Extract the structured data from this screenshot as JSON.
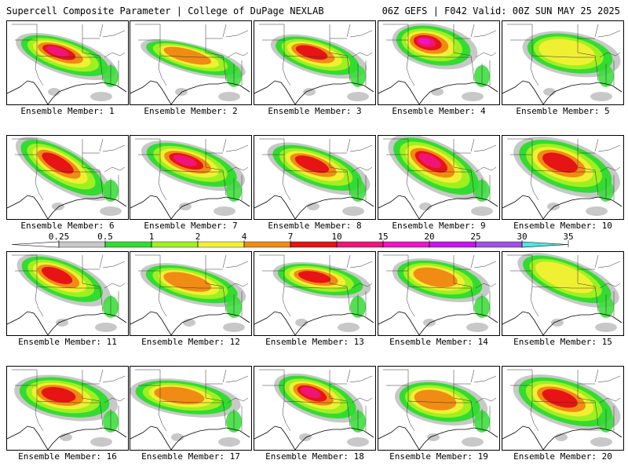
{
  "header": {
    "title": "Supercell Composite Parameter | College of DuPage NEXLAB",
    "run_info": "06Z GEFS | F042 Valid: 00Z SUN MAY 25 2025"
  },
  "colorbar": {
    "levels": [
      "0.25",
      "0.5",
      "1",
      "2",
      "4",
      "7",
      "10",
      "15",
      "20",
      "25",
      "30",
      "35"
    ],
    "colors": [
      "#c8c8c8",
      "#32dc32",
      "#a0f020",
      "#f0f032",
      "#f08c14",
      "#e61414",
      "#f01478",
      "#f014c8",
      "#c814f0",
      "#a050e6",
      "#50e6e6"
    ]
  },
  "panels": [
    {
      "label": "Ensemble Member: 1"
    },
    {
      "label": "Ensemble Member: 2"
    },
    {
      "label": "Ensemble Member: 3"
    },
    {
      "label": "Ensemble Member: 4"
    },
    {
      "label": "Ensemble Member: 5"
    },
    {
      "label": "Ensemble Member: 6"
    },
    {
      "label": "Ensemble Member: 7"
    },
    {
      "label": "Ensemble Member: 8"
    },
    {
      "label": "Ensemble Member: 9"
    },
    {
      "label": "Ensemble Member: 10"
    },
    {
      "label": "Ensemble Member: 11"
    },
    {
      "label": "Ensemble Member: 12"
    },
    {
      "label": "Ensemble Member: 13"
    },
    {
      "label": "Ensemble Member: 14"
    },
    {
      "label": "Ensemble Member: 15"
    },
    {
      "label": "Ensemble Member: 16"
    },
    {
      "label": "Ensemble Member: 17"
    },
    {
      "label": "Ensemble Member: 18"
    },
    {
      "label": "Ensemble Member: 19"
    },
    {
      "label": "Ensemble Member: 20"
    }
  ]
}
